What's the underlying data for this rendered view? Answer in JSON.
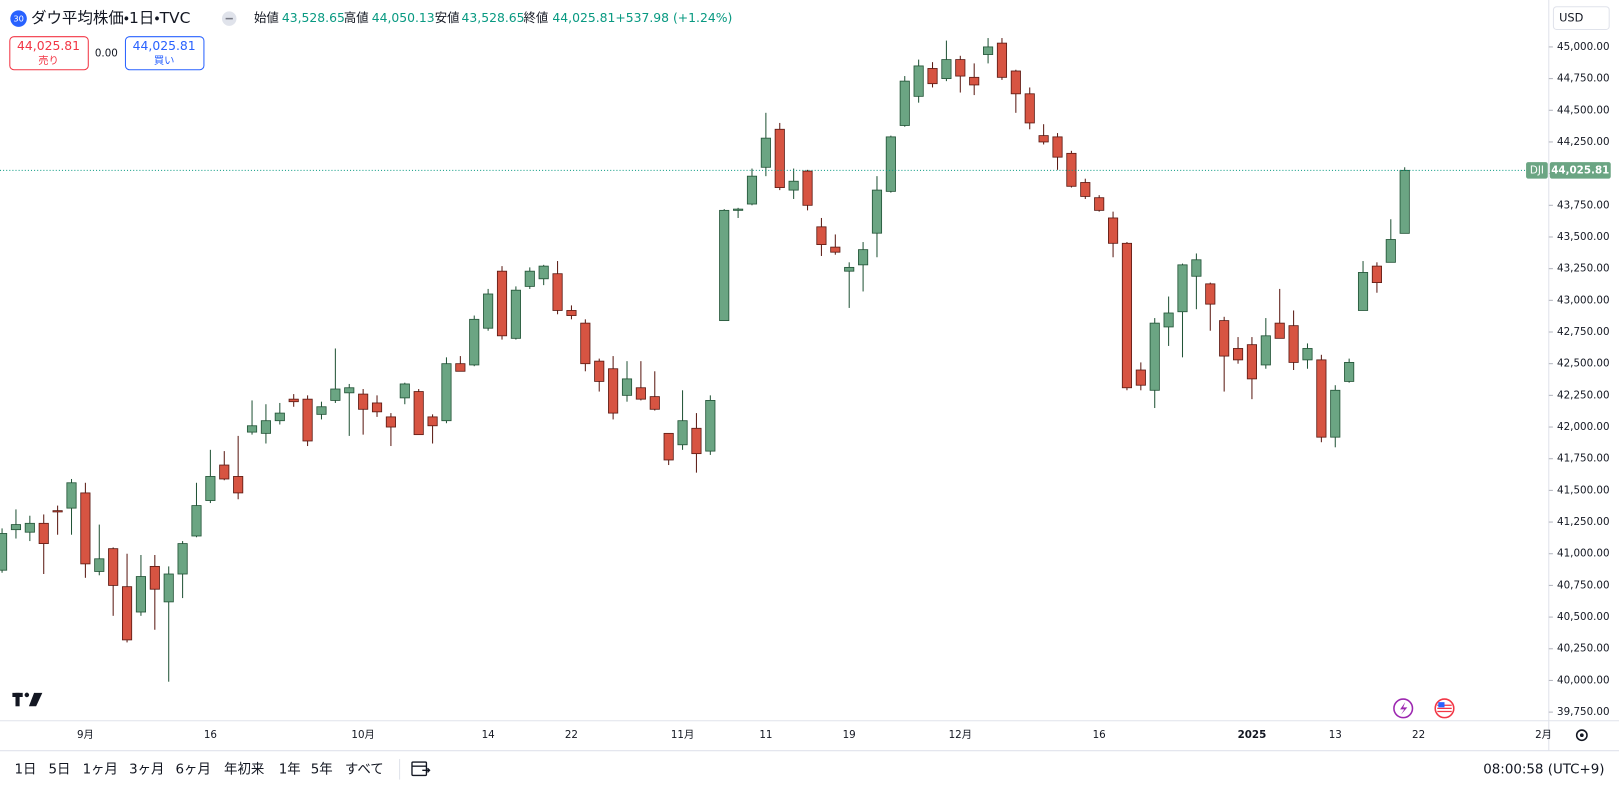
{
  "chart_data": {
    "type": "candlestick",
    "badge": "30",
    "symbol": "ダウ平均株価・1日・TVC",
    "header": [
      {
        "label": "始値",
        "value": "43,528.65"
      },
      {
        "label": "高値",
        "value": "44,050.13"
      },
      {
        "label": "安値",
        "value": "43,528.65"
      },
      {
        "label": "終値",
        "value": "44,025.81"
      }
    ],
    "change": "+537.98 (+1.24%)",
    "sell": {
      "price": "44,025.81",
      "label": "売り"
    },
    "spread": "0.00",
    "buy": {
      "price": "44,025.81",
      "label": "買い"
    },
    "currency": "USD",
    "categories": [
      null,
      null,
      null,
      null,
      null,
      null,
      "9月",
      null,
      null,
      null,
      null,
      null,
      null,
      null,
      null,
      "16",
      null,
      null,
      null,
      null,
      null,
      null,
      null,
      null,
      null,
      null,
      "10月",
      null,
      null,
      null,
      null,
      null,
      null,
      null,
      null,
      "14",
      null,
      null,
      null,
      null,
      null,
      "22",
      null,
      null,
      null,
      null,
      null,
      null,
      null,
      "11月",
      null,
      null,
      null,
      null,
      null,
      "11",
      null,
      null,
      null,
      null,
      null,
      "19",
      null,
      null,
      null,
      null,
      null,
      null,
      null,
      "12月",
      null,
      null,
      null,
      null,
      null,
      null,
      null,
      null,
      null,
      "16",
      null,
      null,
      null,
      null,
      null,
      null,
      null,
      null,
      null,
      null,
      "2025",
      null,
      null,
      null,
      null,
      null,
      "13",
      null,
      null,
      null,
      null,
      null,
      "22",
      null,
      null,
      null,
      null,
      null,
      null,
      null,
      null,
      "2月"
    ],
    "open": [
      40870,
      41190,
      41170,
      41240,
      41340,
      41360,
      41480,
      40860,
      41040,
      40740,
      40540,
      40900,
      40620,
      40840,
      41140,
      41420,
      41700,
      41610,
      41960,
      41950,
      42050,
      42220,
      42220,
      42100,
      42210,
      42270,
      42260,
      42190,
      42080,
      42230,
      42280,
      42080,
      42050,
      42500,
      42490,
      42780,
      43230,
      42700,
      43110,
      43170,
      43210,
      42920,
      42820,
      42520,
      42460,
      42250,
      42310,
      42240,
      41950,
      41860,
      41990,
      41810,
      42840,
      43710,
      43760,
      44050,
      44350,
      43870,
      44020,
      43580,
      43420,
      43230,
      43280,
      43530,
      43860,
      44380,
      44610,
      44830,
      44750,
      44900,
      44760,
      44940,
      45030,
      44810,
      44630,
      44300,
      44290,
      44160,
      43930,
      43810,
      43650,
      43450,
      42450,
      42290,
      42790,
      42910,
      43190,
      43130,
      42840,
      42620,
      42650,
      42490,
      42820,
      42800,
      42530,
      42530,
      41920,
      42360,
      42920,
      43270,
      43300,
      43528.65,
      null,
      null,
      null,
      null,
      null,
      null,
      null,
      null,
      null,
      null
    ],
    "high": [
      41200,
      41350,
      41300,
      41310,
      41380,
      41590,
      41560,
      41230,
      41050,
      41000,
      40990,
      40990,
      40900,
      41100,
      41560,
      41820,
      41810,
      41930,
      42210,
      42180,
      42190,
      42260,
      42250,
      42200,
      42620,
      42340,
      42300,
      42250,
      42110,
      42350,
      42300,
      42100,
      42550,
      42560,
      42880,
      43090,
      43270,
      43110,
      43260,
      43280,
      43310,
      42960,
      42850,
      42540,
      42560,
      42520,
      42520,
      42440,
      41950,
      42290,
      42110,
      42250,
      43720,
      43730,
      44040,
      44480,
      44400,
      44040,
      44030,
      43650,
      43520,
      43300,
      43460,
      43980,
      44300,
      44770,
      44900,
      44880,
      45050,
      44930,
      44870,
      45070,
      45070,
      44820,
      44680,
      44390,
      44320,
      44180,
      43960,
      43830,
      43700,
      43460,
      42510,
      42860,
      43030,
      43290,
      43370,
      43140,
      42870,
      42710,
      42710,
      42860,
      43090,
      42920,
      42660,
      42570,
      42330,
      42540,
      43310,
      43300,
      43640,
      44050.13,
      null,
      null,
      null,
      null,
      null,
      null,
      null,
      null,
      null,
      null
    ],
    "low": [
      40850,
      41120,
      41100,
      40840,
      41150,
      41150,
      40810,
      40830,
      40510,
      40300,
      40510,
      40400,
      39990,
      40650,
      41130,
      41400,
      41580,
      41430,
      41940,
      41870,
      42020,
      42160,
      41850,
      42060,
      42190,
      41930,
      41940,
      42080,
      41850,
      42180,
      41940,
      41870,
      42030,
      42440,
      42480,
      42760,
      42690,
      42690,
      43090,
      43120,
      42890,
      42850,
      42440,
      42280,
      42060,
      42200,
      42210,
      42130,
      41700,
      41820,
      41640,
      41780,
      42840,
      43650,
      43750,
      43980,
      43870,
      43800,
      43710,
      43350,
      43360,
      42940,
      43070,
      43340,
      43850,
      44370,
      44560,
      44680,
      44730,
      44640,
      44620,
      44870,
      44740,
      44480,
      44350,
      44230,
      44030,
      43890,
      43800,
      43700,
      43340,
      42290,
      42290,
      42150,
      42640,
      42550,
      42930,
      42760,
      42280,
      42500,
      42220,
      42460,
      42700,
      42450,
      42460,
      41880,
      41840,
      42350,
      42920,
      43060,
      43300,
      43528.65,
      null,
      null,
      null,
      null,
      null,
      null,
      null,
      null,
      null,
      null
    ],
    "close": [
      41160,
      41230,
      41240,
      41080,
      41330,
      41560,
      40920,
      40960,
      40750,
      40320,
      40820,
      40720,
      40840,
      41080,
      41380,
      41610,
      41590,
      41480,
      42010,
      42050,
      42110,
      42200,
      41890,
      42160,
      42300,
      42310,
      42140,
      42120,
      42000,
      42340,
      41940,
      42010,
      42500,
      42440,
      42850,
      43050,
      42720,
      43080,
      43230,
      43270,
      42920,
      42880,
      42500,
      42360,
      42110,
      42380,
      42220,
      42140,
      41740,
      42050,
      41790,
      42210,
      43710,
      43720,
      43980,
      44280,
      43890,
      43940,
      43750,
      43440,
      43380,
      43260,
      43400,
      43870,
      44290,
      44730,
      44850,
      44710,
      44900,
      44770,
      44700,
      45000,
      44760,
      44630,
      44400,
      44250,
      44130,
      43900,
      43820,
      43710,
      43450,
      42310,
      42330,
      42820,
      42900,
      43280,
      43320,
      42970,
      42560,
      42530,
      42380,
      42720,
      42700,
      42510,
      42620,
      41920,
      42290,
      42510,
      43220,
      43140,
      43480,
      44025.81,
      null,
      null,
      null,
      null,
      null,
      null,
      null,
      null,
      null,
      null
    ],
    "up_color": "#6ba583",
    "down_color": "#d75442",
    "ylim": [
      39690,
      45370
    ],
    "yticks": [
      {
        "value": 39750,
        "label": "39,750.00"
      },
      {
        "value": 40000,
        "label": "40,000.00"
      },
      {
        "value": 40250,
        "label": "40,250.00"
      },
      {
        "value": 40500,
        "label": "40,500.00"
      },
      {
        "value": 40750,
        "label": "40,750.00"
      },
      {
        "value": 41000,
        "label": "41,000.00"
      },
      {
        "value": 41250,
        "label": "41,250.00"
      },
      {
        "value": 41500,
        "label": "41,500.00"
      },
      {
        "value": 41750,
        "label": "41,750.00"
      },
      {
        "value": 42000,
        "label": "42,000.00"
      },
      {
        "value": 42250,
        "label": "42,250.00"
      },
      {
        "value": 42500,
        "label": "42,500.00"
      },
      {
        "value": 42750,
        "label": "42,750.00"
      },
      {
        "value": 43000,
        "label": "43,000.00"
      },
      {
        "value": 43250,
        "label": "43,250.00"
      },
      {
        "value": 43500,
        "label": "43,500.00"
      },
      {
        "value": 43750,
        "label": "43,750.00"
      },
      {
        "value": 44000,
        "label": "44,000.00"
      },
      {
        "value": 44250,
        "label": "44,250.00"
      },
      {
        "value": 44500,
        "label": "44,500.00"
      },
      {
        "value": 44750,
        "label": "44,750.00"
      },
      {
        "value": 45000,
        "label": "45,000.00"
      }
    ],
    "last_price": {
      "value": 44025.81,
      "label": "44,025.81"
    },
    "last_symbol": "DJI",
    "ranges": [
      "1日",
      "5日",
      "1ヶ月",
      "3ヶ月",
      "6ヶ月",
      "年初来",
      "1年",
      "5年",
      "すべて"
    ],
    "clock": "08:00:58 (UTC+9)"
  }
}
